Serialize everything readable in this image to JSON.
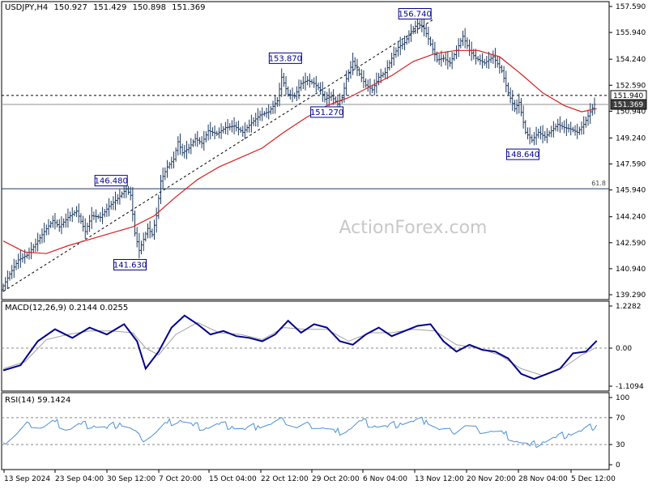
{
  "header": {
    "symbol": "USDJPY,H4",
    "open": "150.927",
    "high": "151.429",
    "low": "150.898",
    "close": "151.369"
  },
  "watermark": "ActionForex.com",
  "colors": {
    "price_bars": "#1e3a5f",
    "moving_average": "#d62020",
    "macd_line": "#00008b",
    "signal_line": "#a0a0a0",
    "rsi_line": "#4a90d9",
    "label_border": "#00008b"
  },
  "chart_data": [
    {
      "type": "line",
      "panel": "price",
      "title": "USDJPY,H4",
      "ylim": [
        139.29,
        157.59
      ],
      "y_ticks": [
        "157.590",
        "155.940",
        "154.240",
        "152.590",
        "150.940",
        "149.240",
        "147.590",
        "145.940",
        "144.240",
        "142.590",
        "140.940",
        "139.290"
      ],
      "x_ticks": [
        "13 Sep 2024",
        "23 Sep 04:00",
        "30 Sep 12:00",
        "7 Oct 20:00",
        "15 Oct 04:00",
        "22 Oct 12:00",
        "29 Oct 20:00",
        "6 Nov 04:00",
        "13 Nov 12:00",
        "20 Nov 20:00",
        "28 Nov 04:00",
        "5 Dec 12:00"
      ],
      "series": [
        {
          "values": [
            [
              0,
              139.6
            ],
            [
              4,
              140.6
            ],
            [
              8,
              141.5
            ],
            [
              12,
              141.8
            ],
            [
              16,
              142.5
            ],
            [
              20,
              143.3
            ],
            [
              24,
              144.0
            ],
            [
              27,
              143.6
            ],
            [
              31,
              144.2
            ],
            [
              35,
              144.6
            ],
            [
              39,
              143.3
            ],
            [
              42,
              144.3
            ],
            [
              46,
              144.2
            ],
            [
              50,
              144.9
            ],
            [
              54,
              145.4
            ],
            [
              58,
              146.0
            ],
            [
              60,
              145.6
            ],
            [
              62,
              143.2
            ],
            [
              64,
              142.1
            ],
            [
              66,
              142.8
            ],
            [
              68,
              143.5
            ],
            [
              70,
              143.1
            ],
            [
              72,
              144.3
            ],
            [
              74,
              146.5
            ],
            [
              77,
              147.4
            ],
            [
              80,
              147.9
            ],
            [
              82,
              149.0
            ],
            [
              84,
              148.3
            ],
            [
              87,
              148.6
            ],
            [
              90,
              149.2
            ],
            [
              93,
              148.9
            ],
            [
              96,
              149.7
            ],
            [
              100,
              149.5
            ],
            [
              104,
              149.9
            ],
            [
              108,
              150.0
            ],
            [
              112,
              149.6
            ],
            [
              116,
              150.2
            ],
            [
              120,
              150.7
            ],
            [
              124,
              150.9
            ],
            [
              128,
              151.6
            ],
            [
              130,
              153.1
            ],
            [
              133,
              152.0
            ],
            [
              136,
              151.9
            ],
            [
              139,
              152.7
            ],
            [
              142,
              152.9
            ],
            [
              145,
              152.7
            ],
            [
              148,
              152.3
            ],
            [
              150,
              151.7
            ],
            [
              153,
              151.9
            ],
            [
              156,
              151.4
            ],
            [
              158,
              151.8
            ],
            [
              160,
              153.0
            ],
            [
              163,
              154.1
            ],
            [
              166,
              153.3
            ],
            [
              169,
              152.6
            ],
            [
              172,
              152.3
            ],
            [
              175,
              153.1
            ],
            [
              178,
              153.4
            ],
            [
              181,
              154.3
            ],
            [
              184,
              155.0
            ],
            [
              187,
              155.3
            ],
            [
              190,
              156.0
            ],
            [
              193,
              156.5
            ],
            [
              196,
              156.2
            ],
            [
              199,
              155.2
            ],
            [
              202,
              154.2
            ],
            [
              205,
              154.3
            ],
            [
              208,
              154.0
            ],
            [
              211,
              154.8
            ],
            [
              214,
              155.7
            ],
            [
              217,
              154.8
            ],
            [
              220,
              154.3
            ],
            [
              224,
              154.0
            ],
            [
              228,
              154.4
            ],
            [
              232,
              153.5
            ],
            [
              235,
              152.1
            ],
            [
              238,
              151.1
            ],
            [
              240,
              151.5
            ],
            [
              243,
              149.6
            ],
            [
              246,
              149.1
            ],
            [
              249,
              149.6
            ],
            [
              252,
              149.3
            ],
            [
              255,
              149.7
            ],
            [
              258,
              150.1
            ],
            [
              261,
              149.9
            ],
            [
              264,
              149.8
            ],
            [
              267,
              149.6
            ],
            [
              270,
              150.1
            ],
            [
              273,
              150.9
            ],
            [
              275,
              151.37
            ]
          ]
        },
        {
          "name": "MA",
          "values": [
            [
              0,
              142.7
            ],
            [
              10,
              142.0
            ],
            [
              20,
              141.9
            ],
            [
              30,
              142.4
            ],
            [
              40,
              142.8
            ],
            [
              50,
              143.2
            ],
            [
              60,
              143.6
            ],
            [
              70,
              144.3
            ],
            [
              80,
              145.5
            ],
            [
              90,
              146.6
            ],
            [
              100,
              147.4
            ],
            [
              110,
              148.0
            ],
            [
              120,
              148.6
            ],
            [
              130,
              149.6
            ],
            [
              140,
              150.5
            ],
            [
              150,
              151.3
            ],
            [
              160,
              151.8
            ],
            [
              170,
              152.5
            ],
            [
              180,
              153.2
            ],
            [
              190,
              154.1
            ],
            [
              200,
              154.6
            ],
            [
              210,
              154.8
            ],
            [
              220,
              154.8
            ],
            [
              230,
              154.4
            ],
            [
              240,
              153.3
            ],
            [
              250,
              152.1
            ],
            [
              260,
              151.3
            ],
            [
              268,
              150.9
            ],
            [
              275,
              151.1
            ]
          ]
        }
      ],
      "horizontal_lines": [
        {
          "value": 151.94,
          "style": "dashed",
          "label": "151.940"
        },
        {
          "value": 151.369,
          "style": "solid",
          "label": "151.369"
        },
        {
          "value": 146.02,
          "style": "solid",
          "label": "61.8"
        }
      ],
      "trend_line": [
        [
          0,
          139.5
        ],
        [
          199,
          156.74
        ]
      ],
      "annotations": [
        {
          "x": 62,
          "y": 146.48,
          "label": "146.480"
        },
        {
          "x": 64,
          "y": 141.63,
          "label": "141.630"
        },
        {
          "x": 130,
          "y": 153.87,
          "label": "153.870"
        },
        {
          "x": 156,
          "y": 151.27,
          "label": "151.270"
        },
        {
          "x": 199,
          "y": 156.74,
          "label": "156.740"
        },
        {
          "x": 246,
          "y": 148.64,
          "label": "148.640"
        }
      ]
    },
    {
      "type": "line",
      "panel": "macd",
      "title": "MACD(12,26,9) 0.2144 0.0255",
      "ylim": [
        -1.1094,
        1.2282
      ],
      "y_ticks": [
        "1.2282",
        "0.00",
        "-1.1094"
      ],
      "series": [
        {
          "values": [
            [
              0,
              -0.65
            ],
            [
              8,
              -0.5
            ],
            [
              16,
              0.2
            ],
            [
              24,
              0.55
            ],
            [
              32,
              0.3
            ],
            [
              40,
              0.6
            ],
            [
              48,
              0.4
            ],
            [
              56,
              0.7
            ],
            [
              62,
              0.2
            ],
            [
              66,
              -0.6
            ],
            [
              72,
              -0.1
            ],
            [
              78,
              0.6
            ],
            [
              84,
              0.95
            ],
            [
              90,
              0.7
            ],
            [
              96,
              0.4
            ],
            [
              102,
              0.5
            ],
            [
              108,
              0.35
            ],
            [
              114,
              0.3
            ],
            [
              120,
              0.2
            ],
            [
              126,
              0.4
            ],
            [
              132,
              0.8
            ],
            [
              138,
              0.45
            ],
            [
              144,
              0.7
            ],
            [
              150,
              0.6
            ],
            [
              156,
              0.2
            ],
            [
              162,
              0.1
            ],
            [
              168,
              0.4
            ],
            [
              174,
              0.6
            ],
            [
              180,
              0.35
            ],
            [
              186,
              0.5
            ],
            [
              192,
              0.65
            ],
            [
              198,
              0.7
            ],
            [
              204,
              0.2
            ],
            [
              210,
              -0.1
            ],
            [
              216,
              0.1
            ],
            [
              222,
              -0.05
            ],
            [
              228,
              -0.1
            ],
            [
              234,
              -0.3
            ],
            [
              240,
              -0.75
            ],
            [
              246,
              -0.9
            ],
            [
              252,
              -0.75
            ],
            [
              258,
              -0.6
            ],
            [
              264,
              -0.15
            ],
            [
              270,
              -0.1
            ],
            [
              275,
              0.2144
            ]
          ]
        },
        {
          "name": "Signal",
          "values": [
            [
              0,
              -0.6
            ],
            [
              10,
              -0.4
            ],
            [
              20,
              0.25
            ],
            [
              30,
              0.4
            ],
            [
              40,
              0.5
            ],
            [
              50,
              0.5
            ],
            [
              60,
              0.45
            ],
            [
              66,
              0.0
            ],
            [
              72,
              -0.2
            ],
            [
              80,
              0.4
            ],
            [
              90,
              0.75
            ],
            [
              100,
              0.45
            ],
            [
              110,
              0.4
            ],
            [
              120,
              0.25
            ],
            [
              130,
              0.6
            ],
            [
              140,
              0.55
            ],
            [
              150,
              0.55
            ],
            [
              160,
              0.2
            ],
            [
              170,
              0.45
            ],
            [
              180,
              0.45
            ],
            [
              190,
              0.55
            ],
            [
              200,
              0.5
            ],
            [
              210,
              0.1
            ],
            [
              220,
              0.0
            ],
            [
              230,
              -0.2
            ],
            [
              240,
              -0.6
            ],
            [
              250,
              -0.8
            ],
            [
              260,
              -0.55
            ],
            [
              268,
              -0.2
            ],
            [
              275,
              0.0255
            ]
          ]
        }
      ],
      "reference_lines": [
        0.0
      ]
    },
    {
      "type": "line",
      "panel": "rsi",
      "title": "RSI(14) 59.1424",
      "ylim": [
        0,
        100
      ],
      "y_ticks": [
        "100",
        "70",
        "30",
        "0"
      ],
      "series": [
        {
          "values": [
            [
              0,
              33
            ],
            [
              6,
              45
            ],
            [
              12,
              62
            ],
            [
              18,
              55
            ],
            [
              24,
              64
            ],
            [
              30,
              52
            ],
            [
              36,
              60
            ],
            [
              42,
              58
            ],
            [
              48,
              54
            ],
            [
              54,
              62
            ],
            [
              60,
              52
            ],
            [
              64,
              38
            ],
            [
              70,
              46
            ],
            [
              76,
              62
            ],
            [
              82,
              66
            ],
            [
              88,
              58
            ],
            [
              94,
              55
            ],
            [
              100,
              60
            ],
            [
              106,
              57
            ],
            [
              112,
              52
            ],
            [
              118,
              58
            ],
            [
              124,
              60
            ],
            [
              130,
              66
            ],
            [
              136,
              55
            ],
            [
              142,
              60
            ],
            [
              148,
              55
            ],
            [
              154,
              48
            ],
            [
              160,
              52
            ],
            [
              166,
              65
            ],
            [
              172,
              58
            ],
            [
              178,
              56
            ],
            [
              184,
              62
            ],
            [
              190,
              64
            ],
            [
              196,
              66
            ],
            [
              202,
              52
            ],
            [
              208,
              48
            ],
            [
              214,
              58
            ],
            [
              220,
              52
            ],
            [
              226,
              50
            ],
            [
              232,
              46
            ],
            [
              238,
              35
            ],
            [
              244,
              28
            ],
            [
              250,
              34
            ],
            [
              256,
              40
            ],
            [
              262,
              46
            ],
            [
              268,
              50
            ],
            [
              275,
              59.1424
            ]
          ]
        }
      ],
      "reference_lines": [
        30,
        70
      ]
    }
  ]
}
